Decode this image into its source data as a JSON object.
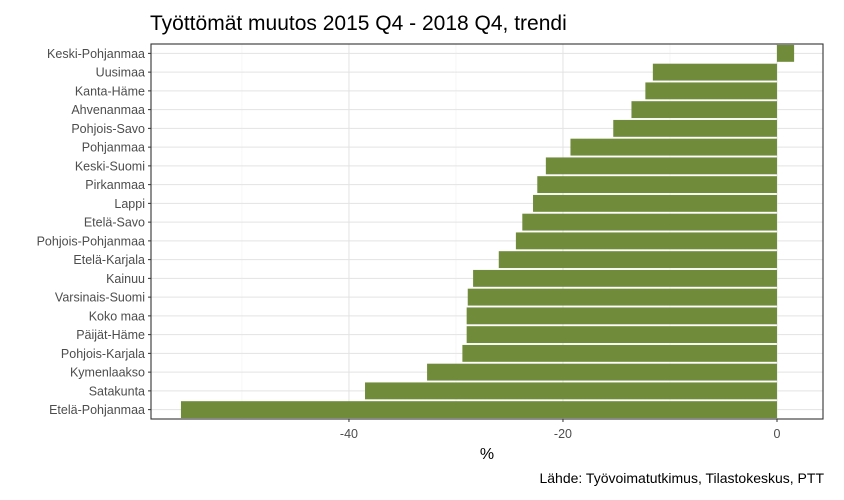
{
  "chart_data": {
    "type": "bar",
    "orientation": "horizontal",
    "title": "Työttömät muutos 2015 Q4 - 2018 Q4, trendi",
    "xlabel": "%",
    "ylabel": "",
    "caption": "Lähde: Työvoimatutkimus, Tilastokeskus, PTT",
    "xlim": [
      -58.5,
      4.3
    ],
    "x_ticks": [
      -40,
      -20,
      0
    ],
    "grid": true,
    "bar_color": "#708c3a",
    "categories": [
      "Keski-Pohjanmaa",
      "Uusimaa",
      "Kanta-Häme",
      "Ahvenanmaa",
      "Pohjois-Savo",
      "Pohjanmaa",
      "Keski-Suomi",
      "Pirkanmaa",
      "Lappi",
      "Etelä-Savo",
      "Pohjois-Pohjanmaa",
      "Etelä-Karjala",
      "Kainuu",
      "Varsinais-Suomi",
      "Koko maa",
      "Päijät-Häme",
      "Pohjois-Karjala",
      "Kymenlaakso",
      "Satakunta",
      "Etelä-Pohjanmaa"
    ],
    "values": [
      1.6,
      -11.6,
      -12.3,
      -13.6,
      -15.3,
      -19.3,
      -21.6,
      -22.4,
      -22.8,
      -23.8,
      -24.4,
      -26.0,
      -28.4,
      -28.9,
      -29.0,
      -29.0,
      -29.4,
      -32.7,
      -38.5,
      -55.7
    ]
  }
}
